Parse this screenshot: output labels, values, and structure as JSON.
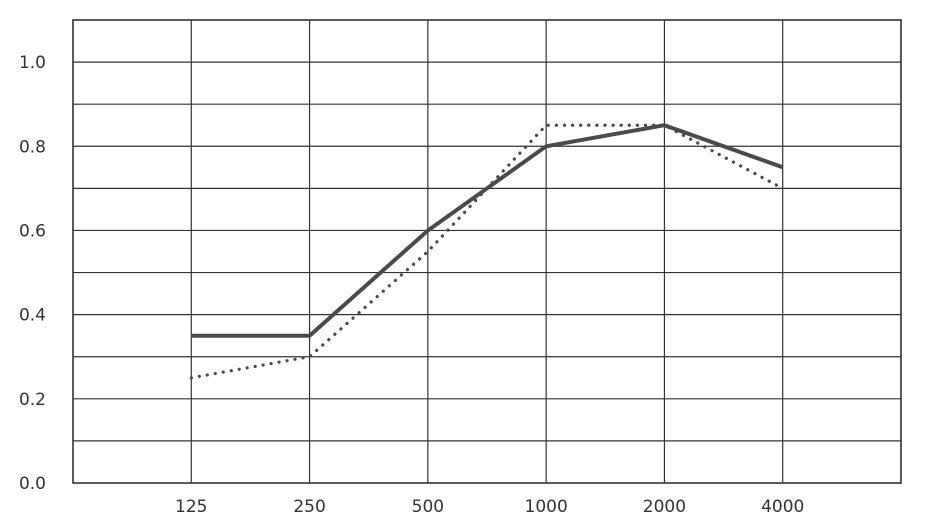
{
  "chart_data": {
    "type": "line",
    "title": "",
    "xlabel": "",
    "ylabel": "",
    "categories": [
      "125",
      "250",
      "500",
      "1000",
      "2000",
      "4000"
    ],
    "ylim": [
      0,
      1.1
    ],
    "yticks": [
      "0.0",
      "0.2",
      "0.4",
      "0.6",
      "0.8",
      "1.0"
    ],
    "grid": true,
    "legend": "none",
    "series": [
      {
        "style": "solid",
        "color": "#4a4a4a",
        "values": [
          0.35,
          0.35,
          0.6,
          0.8,
          0.85,
          0.75
        ]
      },
      {
        "style": "dotted",
        "color": "#4a4a4a",
        "values": [
          0.25,
          0.3,
          0.55,
          0.85,
          0.85,
          0.7
        ]
      }
    ]
  }
}
